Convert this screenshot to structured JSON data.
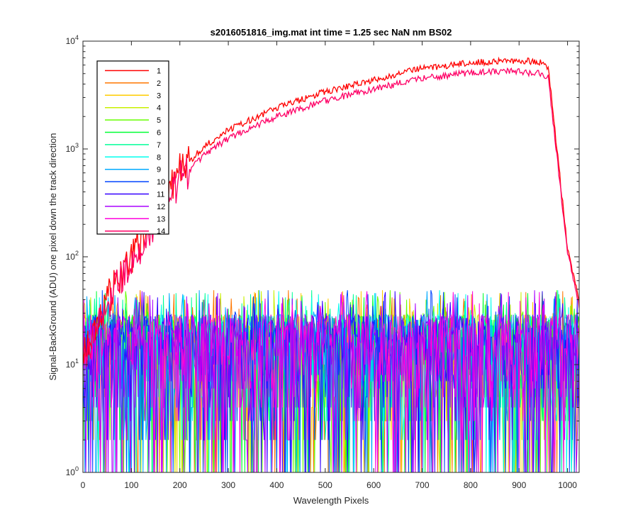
{
  "chart_data": {
    "type": "line",
    "title": "s2016051816_img.mat int time = 1.25 sec  NaN nm BS02",
    "xlabel": "Wavelength Pixels",
    "ylabel": "Signal-BackGround (ADU) one pixel down the track direction",
    "xlim": [
      0,
      1024
    ],
    "ylim": [
      1,
      10000
    ],
    "yscale": "log",
    "grid": false,
    "legend_position": "top-left",
    "x_ticks": [
      "0",
      "100",
      "200",
      "300",
      "400",
      "500",
      "600",
      "700",
      "800",
      "900",
      "1000"
    ],
    "y_ticks": [
      {
        "base": "10",
        "exp": "0"
      },
      {
        "base": "10",
        "exp": "1"
      },
      {
        "base": "10",
        "exp": "2"
      },
      {
        "base": "10",
        "exp": "3"
      },
      {
        "base": "10",
        "exp": "4"
      }
    ],
    "series": [
      {
        "name": "1",
        "color": "#ff0000",
        "kind": "signal",
        "peak": 6600,
        "values_at_x": {
          "0": 14,
          "50": 40,
          "100": 100,
          "150": 260,
          "200": 620,
          "250": 1050,
          "300": 1500,
          "400": 2400,
          "500": 3400,
          "600": 4400,
          "700": 5600,
          "800": 6300,
          "880": 6600,
          "940": 6500,
          "960": 5800,
          "1000": 120,
          "1024": 40
        }
      },
      {
        "name": "2",
        "color": "#ff7700",
        "kind": "noise"
      },
      {
        "name": "3",
        "color": "#ffcc00",
        "kind": "noise"
      },
      {
        "name": "4",
        "color": "#c8f000",
        "kind": "noise"
      },
      {
        "name": "5",
        "color": "#66ff00",
        "kind": "noise"
      },
      {
        "name": "6",
        "color": "#00ff33",
        "kind": "noise"
      },
      {
        "name": "7",
        "color": "#00ff99",
        "kind": "noise"
      },
      {
        "name": "8",
        "color": "#00ffee",
        "kind": "noise"
      },
      {
        "name": "9",
        "color": "#00aaff",
        "kind": "noise"
      },
      {
        "name": "10",
        "color": "#0044ff",
        "kind": "noise"
      },
      {
        "name": "11",
        "color": "#3300ff",
        "kind": "noise"
      },
      {
        "name": "12",
        "color": "#aa00ff",
        "kind": "noise"
      },
      {
        "name": "13",
        "color": "#ff00dd",
        "kind": "noise"
      },
      {
        "name": "14",
        "color": "#ff0066",
        "kind": "signal",
        "peak": 5300,
        "values_at_x": {
          "0": 12,
          "50": 35,
          "100": 90,
          "150": 220,
          "200": 520,
          "250": 880,
          "300": 1250,
          "400": 2000,
          "500": 2800,
          "600": 3600,
          "700": 4500,
          "800": 5100,
          "880": 5300,
          "940": 5000,
          "960": 4600,
          "1000": 110,
          "1024": 35
        }
      }
    ],
    "noise_floor_range": [
      2,
      50
    ]
  }
}
